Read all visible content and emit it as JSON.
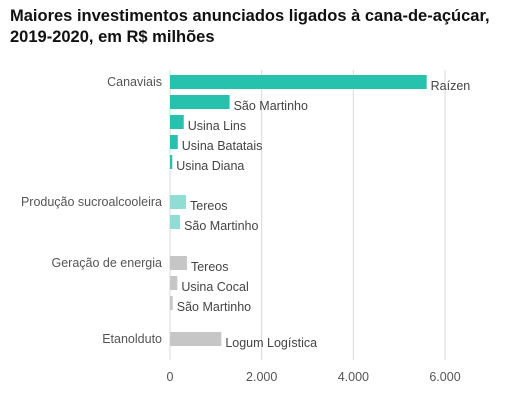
{
  "chart_data": {
    "type": "bar",
    "orientation": "horizontal",
    "title": "Maiores investimentos anunciados ligados à cana-de-açúcar, 2019-2020, em R$ milhões",
    "xlim": [
      0,
      6000
    ],
    "ticks": [
      0,
      2000,
      4000,
      6000
    ],
    "tick_labels": [
      "0",
      "2.000",
      "4.000",
      "6.000"
    ],
    "grid": true,
    "colors": {
      "Canaviais": "#26c2ad",
      "Produção sucroalcooleira": "#8fded3",
      "Geração de energia": "#c6c6c6",
      "Etanolduto": "#c6c6c6"
    },
    "groups": [
      {
        "category": "Canaviais",
        "bars": [
          {
            "label": "Raízen",
            "value": 5600
          },
          {
            "label": "São Martinho",
            "value": 1300
          },
          {
            "label": "Usina Lins",
            "value": 300
          },
          {
            "label": "Usina Batatais",
            "value": 170
          },
          {
            "label": "Usina Diana",
            "value": 50
          }
        ]
      },
      {
        "category": "Produção sucroalcooleira",
        "bars": [
          {
            "label": "Tereos",
            "value": 350
          },
          {
            "label": "São Martinho",
            "value": 220
          }
        ]
      },
      {
        "category": "Geração de energia",
        "bars": [
          {
            "label": "Tereos",
            "value": 370
          },
          {
            "label": "Usina Cocal",
            "value": 160
          },
          {
            "label": "São Martinho",
            "value": 60
          }
        ]
      },
      {
        "category": "Etanolduto",
        "bars": [
          {
            "label": "Logum Logística",
            "value": 1120
          }
        ]
      }
    ]
  }
}
